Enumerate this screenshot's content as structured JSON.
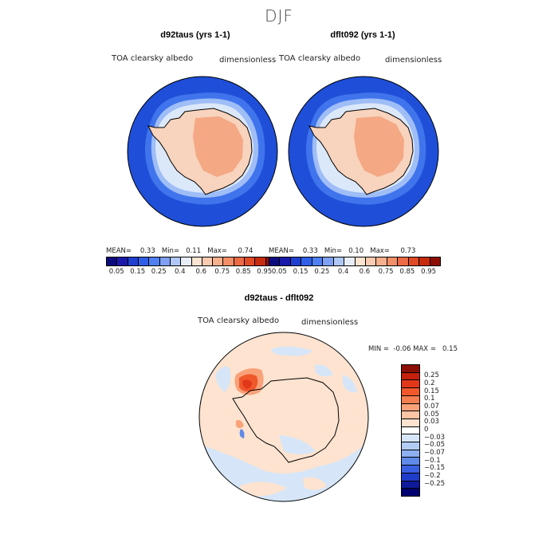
{
  "figure": {
    "title": "DJF"
  },
  "panels": [
    {
      "title": "d92taus (yrs 1-1)",
      "variable": "TOA clearsky albedo",
      "units": "dimensionless",
      "stats": {
        "mean_label": "MEAN=",
        "mean": "0.33",
        "min_label": "Min=",
        "min": "0.11",
        "max_label": "Max=",
        "max": "0.74"
      }
    },
    {
      "title": "dflt092 (yrs 1-1)",
      "variable": "TOA clearsky albedo",
      "units": "dimensionless",
      "stats": {
        "mean_label": "MEAN=",
        "mean": "0.33",
        "min_label": "Min=",
        "min": "0.10",
        "max_label": "Max=",
        "max": "0.73"
      }
    }
  ],
  "colorbar_main": {
    "colors": [
      "#0b0b7e",
      "#1a1aaa",
      "#1f3fd0",
      "#2f5fe8",
      "#4f7ff0",
      "#7fa0f4",
      "#b0c8f8",
      "#e8eef8",
      "#fbe4d2",
      "#f9cbb0",
      "#f7b08e",
      "#f28f68",
      "#ec6a44",
      "#e04a24",
      "#c82a0e",
      "#8e0d04"
    ],
    "labels": [
      "0.05",
      "0.15",
      "0.25",
      "0.4",
      "0.6",
      "0.75",
      "0.85",
      "0.95"
    ]
  },
  "difference": {
    "title": "d92taus - dflt092",
    "variable": "TOA clearsky albedo",
    "units": "dimensionless",
    "min_label": "MIN =",
    "min": "-0.06",
    "max_label": "MAX =",
    "max": "0.15"
  },
  "colorbar_diff": {
    "colors": [
      "#8b0f06",
      "#c4200c",
      "#e2381a",
      "#f0582c",
      "#f57f52",
      "#f9a27a",
      "#fbc4a4",
      "#fde3d0",
      "#ffffff",
      "#d6e6f8",
      "#b2ccf4",
      "#8eb0f0",
      "#5f8ae8",
      "#3a5fe0",
      "#1f3cc8",
      "#0e1a9a",
      "#000070"
    ],
    "labels": [
      "0.25",
      "0.2",
      "0.15",
      "0.1",
      "0.07",
      "0.05",
      "0.03",
      "0",
      "−0.03",
      "−0.05",
      "−0.07",
      "−0.1",
      "−0.15",
      "−0.2",
      "−0.25"
    ]
  },
  "colors": {
    "ocean_low": "#1f4fd8",
    "ice_edge": "#c9dcf6",
    "land": "#f8d3bd",
    "interior_high": "#f4a884",
    "diff_background": "#fde3d0",
    "diff_negative": "#d6e6f8",
    "diff_positive_max": "#e2381a"
  }
}
